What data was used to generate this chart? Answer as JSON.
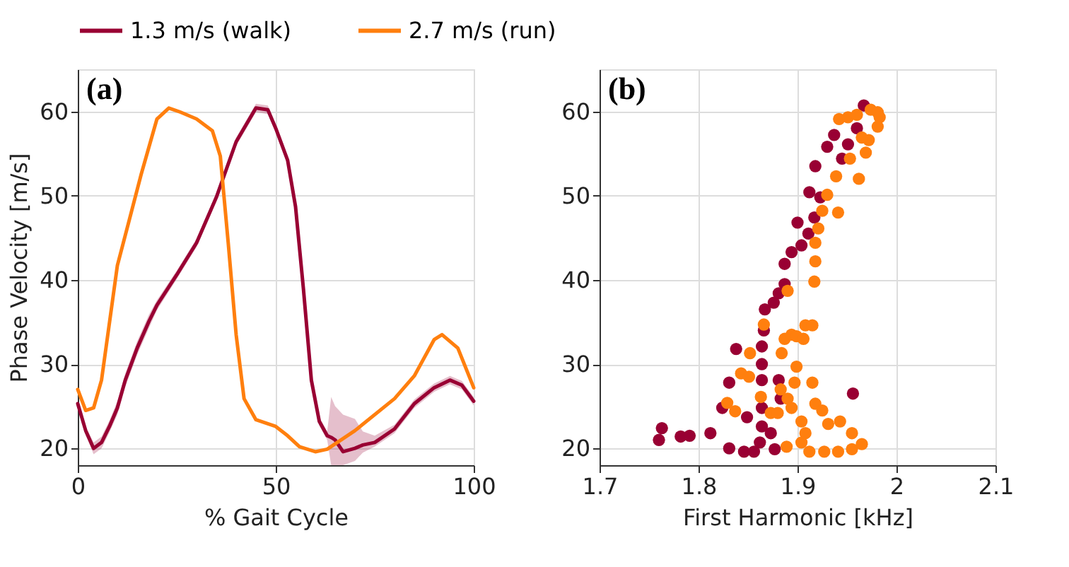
{
  "chart_data": [
    {
      "type": "line",
      "xlabel": "% Gait Cycle",
      "ylabel": "Phase Velocity [m/s]",
      "annotations": [
        "(a)"
      ],
      "xlim": [
        0,
        100
      ],
      "xticks": [
        0,
        50,
        100
      ],
      "ylim": [
        18,
        65
      ],
      "yticks": [
        20,
        30,
        40,
        50,
        60
      ],
      "grid": true,
      "legend": "top",
      "marker": "none",
      "line_style": "solid",
      "series": [
        {
          "name": "1.3 m/s (walk)",
          "color": "#990033",
          "x": [
            0,
            2,
            4,
            6,
            8,
            10,
            12,
            15,
            18,
            20,
            25,
            30,
            35,
            40,
            45,
            48,
            50,
            53,
            55,
            57,
            59,
            61,
            63,
            64,
            65,
            67,
            70,
            72,
            75,
            80,
            85,
            90,
            94,
            97,
            100
          ],
          "values": [
            25.3,
            22.1,
            20.0,
            20.7,
            22.6,
            24.8,
            28.1,
            31.9,
            35.1,
            37.0,
            40.6,
            44.4,
            49.8,
            56.4,
            60.4,
            60.2,
            58.0,
            54.2,
            48.7,
            38.9,
            28.1,
            23.2,
            21.5,
            21.3,
            21.0,
            19.6,
            20.0,
            20.4,
            20.7,
            22.3,
            25.3,
            27.2,
            28.1,
            27.5,
            25.6
          ],
          "lower": [
            24.8,
            21.6,
            19.3,
            20.0,
            21.9,
            24.0,
            27.3,
            31.1,
            34.3,
            36.4,
            40.1,
            43.9,
            49.3,
            55.9,
            59.9,
            59.7,
            57.5,
            53.7,
            48.2,
            38.4,
            27.6,
            22.7,
            21.0,
            18.0,
            18.0,
            18.0,
            18.5,
            19.5,
            20.2,
            21.8,
            24.8,
            26.7,
            27.6,
            27.0,
            25.1
          ],
          "upper": [
            25.8,
            22.6,
            20.7,
            21.4,
            23.3,
            25.6,
            28.9,
            32.7,
            35.9,
            37.6,
            41.1,
            44.9,
            50.3,
            56.9,
            60.9,
            60.7,
            58.5,
            54.7,
            49.2,
            39.4,
            28.6,
            23.7,
            22.0,
            26.1,
            25.0,
            24.0,
            23.5,
            22.0,
            21.5,
            22.8,
            25.8,
            27.7,
            28.6,
            28.0,
            26.1
          ]
        },
        {
          "name": "2.7 m/s (run)",
          "color": "#ff7f0e",
          "x": [
            0,
            2,
            4,
            6,
            10,
            13,
            16,
            20,
            23,
            26,
            30,
            34,
            36,
            38,
            40,
            42,
            45,
            50,
            53,
            56,
            60,
            63,
            70,
            80,
            85,
            90,
            92,
            96,
            100
          ],
          "values": [
            27.0,
            24.5,
            24.8,
            28.1,
            41.7,
            47.1,
            52.5,
            59.1,
            60.4,
            59.9,
            59.1,
            57.7,
            54.7,
            44.4,
            33.5,
            25.9,
            23.4,
            22.6,
            21.5,
            20.2,
            19.6,
            19.9,
            22.1,
            25.9,
            28.6,
            32.9,
            33.5,
            31.9,
            27.2
          ]
        }
      ]
    },
    {
      "type": "scatter",
      "xlabel": "First Harmonic [kHz]",
      "annotations": [
        "(b)"
      ],
      "xlim": [
        1.7,
        2.1
      ],
      "xticks": [
        1.7,
        1.8,
        1.9,
        2,
        2.1
      ],
      "ylim": [
        18,
        65
      ],
      "yticks": [
        20,
        30,
        40,
        50,
        60
      ],
      "grid": true,
      "legend": "top",
      "marker": "circle",
      "series": [
        {
          "name": "1.3 m/s (walk)",
          "color": "#990033",
          "x": [
            1.76,
            1.763,
            1.782,
            1.791,
            1.812,
            1.824,
            1.831,
            1.831,
            1.838,
            1.849,
            1.846,
            1.856,
            1.862,
            1.864,
            1.864,
            1.864,
            1.864,
            1.864,
            1.866,
            1.867,
            1.873,
            1.877,
            1.876,
            1.881,
            1.887,
            1.887,
            1.894,
            1.9,
            1.904,
            1.911,
            1.912,
            1.917,
            1.923,
            1.918,
            1.93,
            1.937,
            1.945,
            1.951,
            1.956,
            1.96,
            1.967,
            1.881,
            1.883
          ],
          "values": [
            21.0,
            22.4,
            21.4,
            21.5,
            21.8,
            24.8,
            20.0,
            27.8,
            31.8,
            23.7,
            19.6,
            19.6,
            20.7,
            22.6,
            24.8,
            28.1,
            30.0,
            32.1,
            34.0,
            36.5,
            21.8,
            19.9,
            37.3,
            38.4,
            41.9,
            39.5,
            43.3,
            46.8,
            44.1,
            45.5,
            50.4,
            47.4,
            49.8,
            53.5,
            55.8,
            57.2,
            54.4,
            56.1,
            26.5,
            58.0,
            60.7,
            28.1,
            25.9
          ]
        },
        {
          "name": "2.7 m/s (run)",
          "color": "#ff7f0e",
          "x": [
            1.829,
            1.837,
            1.843,
            1.851,
            1.852,
            1.863,
            1.866,
            1.873,
            1.88,
            1.883,
            1.884,
            1.887,
            1.894,
            1.899,
            1.906,
            1.908,
            1.899,
            1.897,
            1.89,
            1.894,
            1.904,
            1.908,
            1.889,
            1.904,
            1.912,
            1.927,
            1.941,
            1.955,
            1.965,
            1.955,
            1.943,
            1.931,
            1.918,
            1.925,
            1.915,
            1.915,
            1.89,
            1.917,
            1.918,
            1.918,
            1.921,
            1.925,
            1.93,
            1.941,
            1.939,
            1.953,
            1.962,
            1.969,
            1.972,
            1.965,
            1.942,
            1.951,
            1.96,
            1.974,
            1.981,
            1.983,
            1.981
          ],
          "values": [
            25.4,
            24.4,
            28.9,
            28.5,
            31.3,
            26.1,
            34.7,
            24.2,
            24.2,
            27.0,
            31.3,
            33.0,
            33.5,
            33.3,
            33.0,
            34.6,
            29.7,
            27.8,
            25.9,
            24.8,
            23.2,
            21.8,
            20.2,
            20.7,
            19.6,
            19.6,
            19.6,
            19.9,
            20.5,
            21.8,
            23.2,
            22.9,
            25.3,
            24.5,
            27.8,
            34.6,
            38.7,
            39.8,
            42.2,
            44.4,
            46.1,
            48.2,
            50.1,
            48.0,
            52.3,
            54.4,
            52.0,
            55.1,
            56.6,
            56.9,
            59.1,
            59.3,
            59.6,
            60.2,
            59.9,
            59.3,
            58.2
          ]
        }
      ]
    }
  ]
}
